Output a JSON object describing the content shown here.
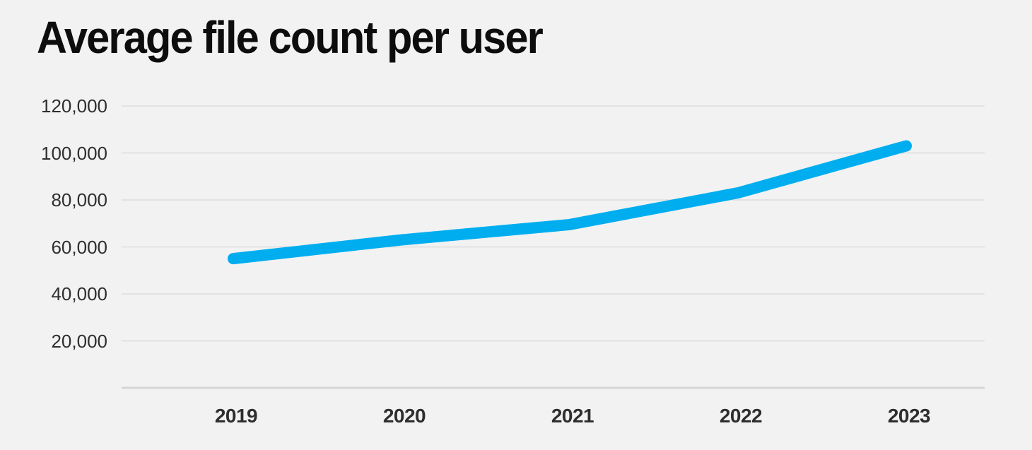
{
  "title": "Average file count per user",
  "chart_data": {
    "type": "line",
    "title": "Average file count per user",
    "categories": [
      "2019",
      "2020",
      "2021",
      "2022",
      "2023"
    ],
    "series": [
      {
        "name": "Average file count per user",
        "values": [
          55000,
          63000,
          69500,
          83000,
          103000
        ]
      }
    ],
    "xlabel": "",
    "ylabel": "",
    "ylim": [
      0,
      120000
    ],
    "yticks": [
      {
        "label": "120,000",
        "value": 120000
      },
      {
        "label": "100,000",
        "value": 100000
      },
      {
        "label": "80,000",
        "value": 80000
      },
      {
        "label": "60,000",
        "value": 60000
      },
      {
        "label": "40,000",
        "value": 40000
      },
      {
        "label": "20,000",
        "value": 20000
      }
    ],
    "grid": "horizontal-only",
    "legend_position": "none",
    "colors": {
      "line": "#00AEF0",
      "background": "#f2f2f2",
      "gridline": "#e2e2e2",
      "axis_line": "#d5d5d5",
      "tick_label": "#2e2e2e",
      "title": "#0d0d0d"
    }
  }
}
